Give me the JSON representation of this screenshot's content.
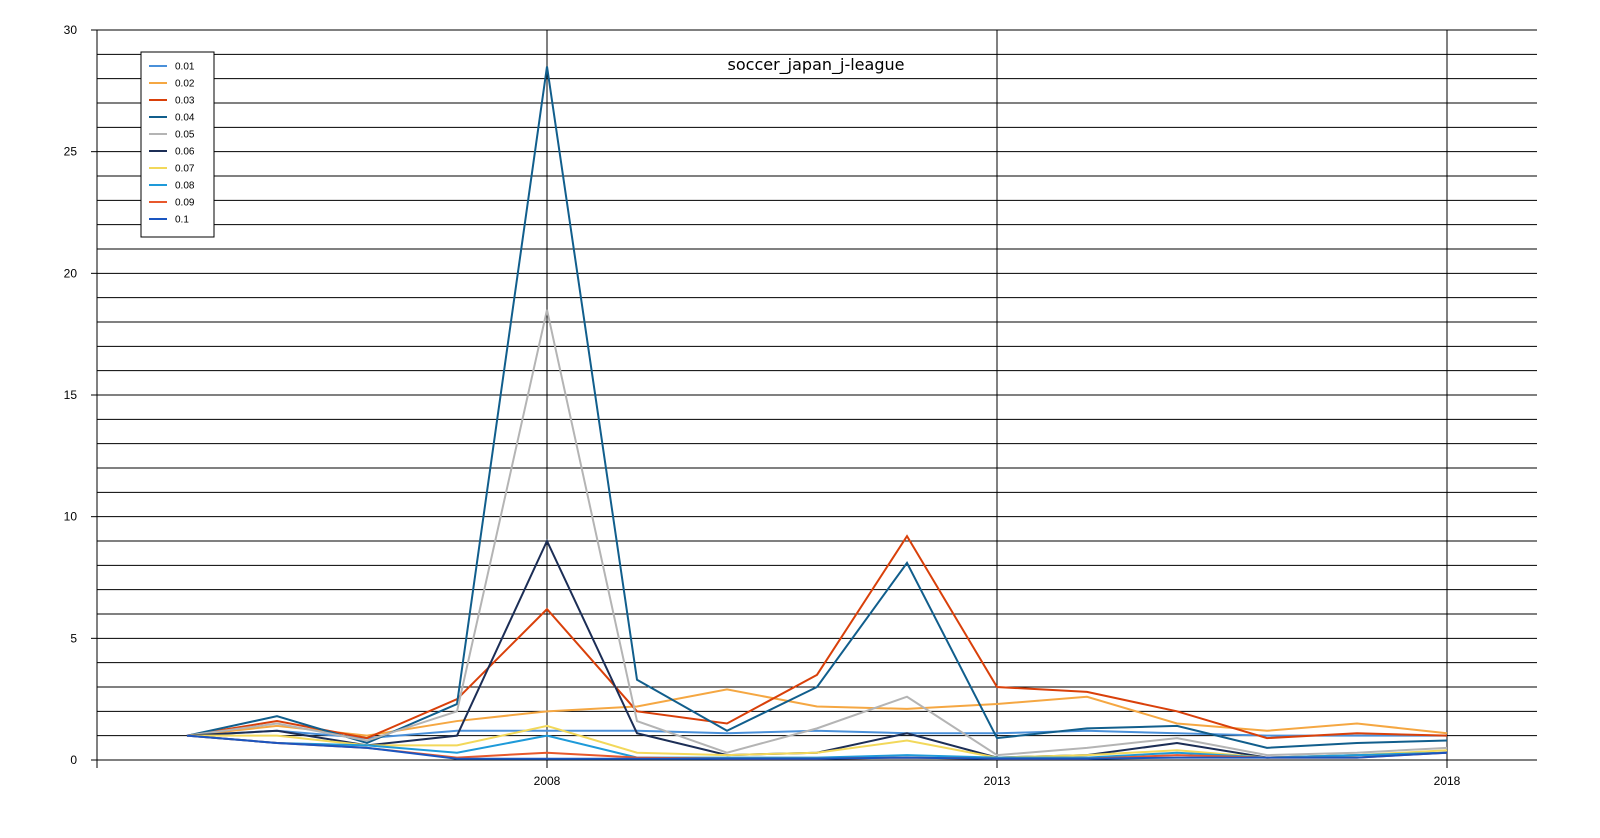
{
  "chart_data": {
    "type": "line",
    "title": "soccer_japan_j-league",
    "xlabel": "",
    "ylabel": "",
    "x": [
      2004,
      2005,
      2006,
      2007,
      2008,
      2009,
      2010,
      2011,
      2012,
      2013,
      2014,
      2015,
      2016,
      2017,
      2018
    ],
    "x_ticks": [
      2008,
      2013,
      2018
    ],
    "xlim": [
      2003,
      2019
    ],
    "ylim": [
      0,
      30
    ],
    "y_ticks": [
      0,
      5,
      10,
      15,
      20,
      25,
      30
    ],
    "grid": true,
    "legend_position": "top-left",
    "series": [
      {
        "name": "0.01",
        "color": "#4a90d9",
        "values": [
          1.0,
          1.2,
          0.9,
          1.2,
          1.2,
          1.2,
          1.1,
          1.2,
          1.1,
          1.1,
          1.2,
          1.1,
          1.0,
          1.0,
          1.0
        ]
      },
      {
        "name": "0.02",
        "color": "#f5a742",
        "values": [
          1.0,
          1.4,
          1.0,
          1.6,
          2.0,
          2.2,
          2.9,
          2.2,
          2.1,
          2.3,
          2.6,
          1.5,
          1.2,
          1.5,
          1.1
        ]
      },
      {
        "name": "0.03",
        "color": "#d9400a",
        "values": [
          1.0,
          1.6,
          0.9,
          2.5,
          6.2,
          2.0,
          1.5,
          3.5,
          9.2,
          3.0,
          2.8,
          2.0,
          0.9,
          1.1,
          1.0
        ]
      },
      {
        "name": "0.04",
        "color": "#115e8c",
        "values": [
          1.0,
          1.8,
          0.7,
          2.3,
          28.5,
          3.3,
          1.2,
          3.0,
          8.1,
          0.9,
          1.3,
          1.4,
          0.5,
          0.7,
          0.8
        ]
      },
      {
        "name": "0.05",
        "color": "#b4b4b4",
        "values": [
          1.0,
          1.5,
          0.8,
          2.0,
          18.5,
          1.6,
          0.3,
          1.3,
          2.6,
          0.2,
          0.5,
          0.9,
          0.2,
          0.3,
          0.5
        ]
      },
      {
        "name": "0.06",
        "color": "#1c2e56",
        "values": [
          1.0,
          1.2,
          0.6,
          1.0,
          9.0,
          1.1,
          0.2,
          0.3,
          1.1,
          0.1,
          0.2,
          0.7,
          0.1,
          0.2,
          0.3
        ]
      },
      {
        "name": "0.07",
        "color": "#f2d85a",
        "values": [
          1.0,
          1.0,
          0.6,
          0.6,
          1.4,
          0.3,
          0.2,
          0.3,
          0.8,
          0.1,
          0.2,
          0.4,
          0.1,
          0.2,
          0.4
        ]
      },
      {
        "name": "0.08",
        "color": "#1e9ad9",
        "values": [
          1.0,
          0.7,
          0.6,
          0.3,
          1.0,
          0.1,
          0.1,
          0.1,
          0.2,
          0.1,
          0.1,
          0.3,
          0.1,
          0.2,
          0.3
        ]
      },
      {
        "name": "0.09",
        "color": "#e8582c",
        "values": [
          1.0,
          0.7,
          0.5,
          0.1,
          0.3,
          0.1,
          0.05,
          0.05,
          0.1,
          0.05,
          0.05,
          0.2,
          0.1,
          0.1,
          0.3
        ]
      },
      {
        "name": "0.1",
        "color": "#1a55c0",
        "values": [
          1.0,
          0.7,
          0.5,
          0.05,
          0.05,
          0.05,
          0.05,
          0.05,
          0.1,
          0.05,
          0.05,
          0.1,
          0.1,
          0.1,
          0.3
        ]
      }
    ]
  }
}
